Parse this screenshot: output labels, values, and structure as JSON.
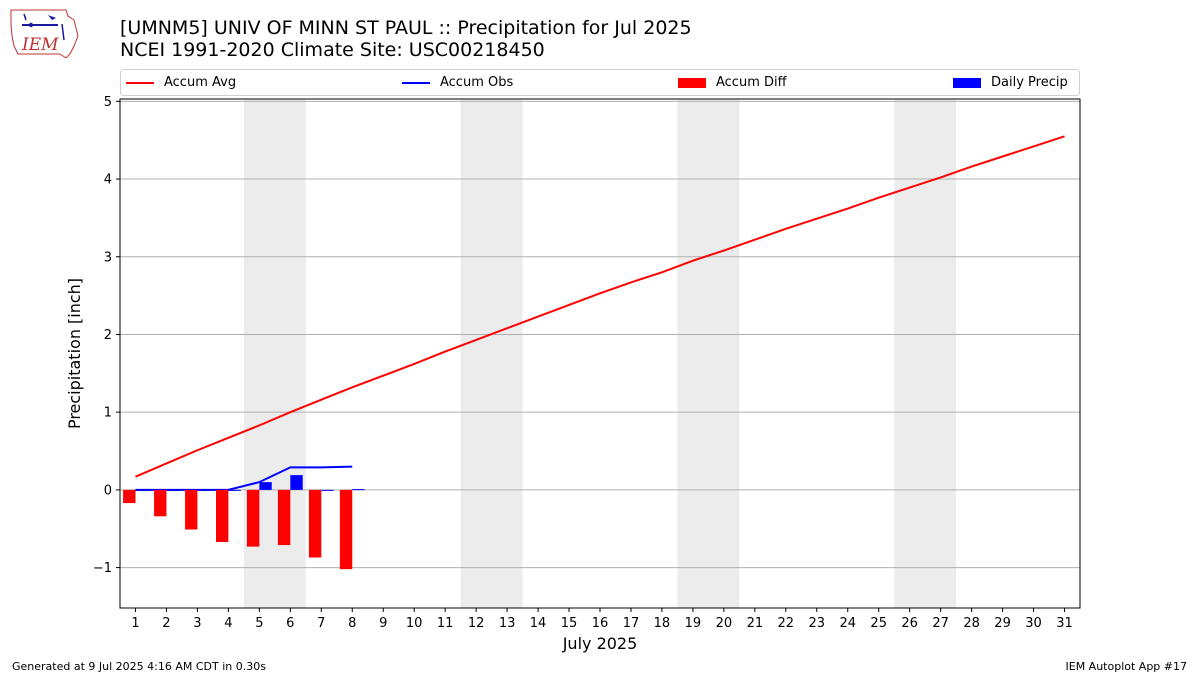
{
  "page": {
    "logo_text": "IEM",
    "title_line1": "[UMNM5] UNIV OF MINN ST PAUL :: Precipitation for Jul 2025",
    "title_line2": "NCEI 1991-2020 Climate Site: USC00218450",
    "footer_left": "Generated at 9 Jul 2025 4:16 AM CDT in 0.30s",
    "footer_right": "IEM Autoplot App #17"
  },
  "legend": [
    {
      "label": "Accum Avg",
      "kind": "line",
      "color": "#ff0000"
    },
    {
      "label": "Accum Obs",
      "kind": "line",
      "color": "#0000ff"
    },
    {
      "label": "Accum Diff",
      "kind": "box",
      "color": "#ff0000"
    },
    {
      "label": "Daily Precip",
      "kind": "box",
      "color": "#0000ff"
    }
  ],
  "chart_data": {
    "type": "line",
    "title": "[UMNM5] UNIV OF MINN ST PAUL :: Precipitation for Jul 2025",
    "subtitle": "NCEI 1991-2020 Climate Site: USC00218450",
    "xlabel": "July 2025",
    "ylabel": "Precipitation [inch]",
    "x": [
      1,
      2,
      3,
      4,
      5,
      6,
      7,
      8,
      9,
      10,
      11,
      12,
      13,
      14,
      15,
      16,
      17,
      18,
      19,
      20,
      21,
      22,
      23,
      24,
      25,
      26,
      27,
      28,
      29,
      30,
      31
    ],
    "xlim": [
      0.5,
      31.5
    ],
    "ylim": [
      -1.52,
      5.03
    ],
    "yticks": [
      -1,
      0,
      1,
      2,
      3,
      4,
      5
    ],
    "ytick_labels": [
      "−1",
      "0",
      "1",
      "2",
      "3",
      "4",
      "5"
    ],
    "grid": "horizontal",
    "legend_position": "top",
    "weekend_shading": [
      [
        4.5,
        6.5
      ],
      [
        11.5,
        13.5
      ],
      [
        18.5,
        20.5
      ],
      [
        25.5,
        27.5
      ]
    ],
    "weekend_color": "#ececec",
    "series": [
      {
        "name": "Accum Avg",
        "kind": "line",
        "color": "#ff0000",
        "x": [
          1,
          2,
          3,
          4,
          5,
          6,
          7,
          8,
          9,
          10,
          11,
          12,
          13,
          14,
          15,
          16,
          17,
          18,
          19,
          20,
          21,
          22,
          23,
          24,
          25,
          26,
          27,
          28,
          29,
          30,
          31
        ],
        "values": [
          0.17,
          0.34,
          0.51,
          0.67,
          0.83,
          1.0,
          1.16,
          1.32,
          1.47,
          1.62,
          1.78,
          1.93,
          2.08,
          2.23,
          2.38,
          2.53,
          2.67,
          2.8,
          2.95,
          3.08,
          3.22,
          3.36,
          3.49,
          3.62,
          3.76,
          3.89,
          4.02,
          4.16,
          4.29,
          4.42,
          4.55
        ]
      },
      {
        "name": "Accum Obs",
        "kind": "line",
        "color": "#0000ff",
        "x": [
          1,
          2,
          3,
          4,
          5,
          6,
          7,
          8
        ],
        "values": [
          0.0,
          0.0,
          0.0,
          0.0,
          0.1,
          0.29,
          0.29,
          0.3
        ]
      },
      {
        "name": "Accum Diff",
        "kind": "bar",
        "color": "#ff0000",
        "offset": -0.2,
        "x": [
          1,
          2,
          3,
          4,
          5,
          6,
          7,
          8
        ],
        "values": [
          -0.17,
          -0.34,
          -0.51,
          -0.67,
          -0.73,
          -0.71,
          -0.87,
          -1.02
        ]
      },
      {
        "name": "Daily Precip",
        "kind": "bar",
        "color": "#0000ff",
        "offset": 0.2,
        "x": [
          1,
          2,
          3,
          4,
          5,
          6,
          7,
          8
        ],
        "values": [
          0.0,
          0.0,
          0.0,
          0.0,
          0.1,
          0.19,
          0.0,
          0.01
        ]
      }
    ]
  }
}
